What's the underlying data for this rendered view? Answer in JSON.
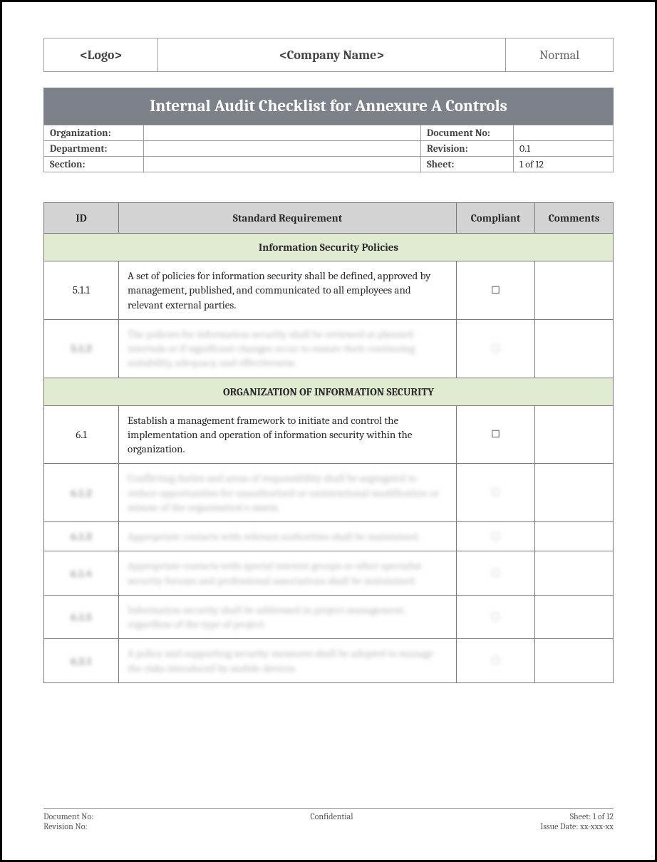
{
  "colors": {
    "title_bar_bg": "#7d818a",
    "title_bar_text": "#ffffff",
    "header_border": "#9e9e9e",
    "table_border": "#7a7a7a",
    "table_header_bg": "#d3d3d3",
    "section_row_bg": "#e1ebd2",
    "body_text": "#2b2b2b",
    "muted_text": "#666666",
    "footer_text": "#5a5a5a",
    "page_border": "#000000"
  },
  "header": {
    "logo_placeholder": "<Logo>",
    "company_name_placeholder": "<Company Name>",
    "status_label": "Normal"
  },
  "title": "Internal Audit Checklist for Annexure A Controls",
  "meta": {
    "organization_label": "Organization:",
    "organization_value": "",
    "document_no_label": "Document No:",
    "document_no_value": "",
    "department_label": "Department:",
    "department_value": "",
    "revision_label": "Revision:",
    "revision_value": "0.1",
    "section_label": "Section:",
    "section_value": "",
    "sheet_label": "Sheet:",
    "sheet_value": "1 of 12"
  },
  "table": {
    "columns": {
      "id": "ID",
      "requirement": "Standard Requirement",
      "compliant": "Compliant",
      "comments": "Comments"
    },
    "checkbox_glyph": "☐",
    "sections": [
      {
        "title": "Information Security Policies",
        "rows": [
          {
            "id": "5.1.1",
            "requirement": "A set of policies for information security shall be defined, approved by management, published, and communicated to all employees and relevant external parties.",
            "blurred": false
          },
          {
            "id": "5.1.2",
            "requirement": "The policies for information security shall be reviewed at planned intervals or if significant changes occur to ensure their continuing suitability, adequacy, and effectiveness.",
            "blurred": true
          }
        ]
      },
      {
        "title": "ORGANIZATION OF INFORMATION SECURITY",
        "rows": [
          {
            "id": "6.1",
            "requirement": "Establish a management framework to initiate and control the implementation and operation of information security within the organization.",
            "blurred": false
          },
          {
            "id": "6.1.2",
            "requirement": "Conflicting duties and areas of responsibility shall be segregated to reduce opportunities for unauthorized or unintentional modification or misuse of the organization's assets.",
            "blurred": true
          },
          {
            "id": "6.1.3",
            "requirement": "Appropriate contacts with relevant authorities shall be maintained.",
            "blurred": true
          },
          {
            "id": "6.1.4",
            "requirement": "Appropriate contacts with special interest groups or other specialist security forums and professional associations shall be maintained.",
            "blurred": true
          },
          {
            "id": "6.1.5",
            "requirement": "Information security shall be addressed in project management, regardless of the type of project.",
            "blurred": true
          },
          {
            "id": "6.2.1",
            "requirement": "A policy and supporting security measures shall be adopted to manage the risks introduced by mobile devices.",
            "blurred": true
          }
        ]
      }
    ]
  },
  "footer": {
    "doc_no_label": "Document No:",
    "confidential": "Confidential",
    "sheet_label": "Sheet: 1 of 12",
    "rev_no_label": "Revision No:",
    "issue_date_label": "Issue Date: xx-xxx-xx"
  }
}
